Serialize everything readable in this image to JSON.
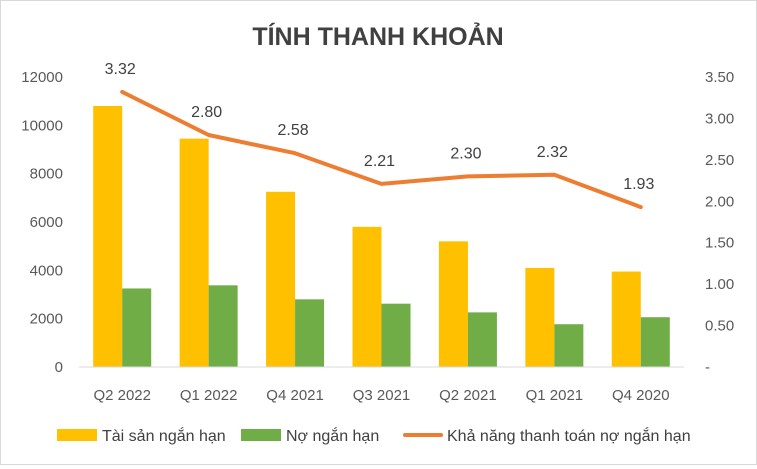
{
  "chart_data": {
    "type": "bar",
    "title": "TÍNH THANH KHOẢN",
    "categories": [
      "Q2 2022",
      "Q1 2022",
      "Q4 2021",
      "Q3 2021",
      "Q2 2021",
      "Q1 2021",
      "Q4 2020"
    ],
    "series": [
      {
        "name": "Tài sản ngắn hạn",
        "type": "bar",
        "axis": "left",
        "color": "#FFC000",
        "values": [
          10800,
          9450,
          7250,
          5800,
          5200,
          4100,
          3950
        ]
      },
      {
        "name": "Nợ ngắn hạn",
        "type": "bar",
        "axis": "left",
        "color": "#70AD47",
        "values": [
          3250,
          3380,
          2800,
          2620,
          2260,
          1770,
          2060
        ]
      },
      {
        "name": "Khả năng thanh toán nợ ngắn hạn",
        "type": "line",
        "axis": "right",
        "color": "#ED7D31",
        "values": [
          3.32,
          2.8,
          2.58,
          2.21,
          2.3,
          2.32,
          1.93
        ],
        "labels": [
          "3.32",
          "2.80",
          "2.58",
          "2.21",
          "2.30",
          "2.32",
          "1.93"
        ]
      }
    ],
    "left_axis": {
      "min": 0,
      "max": 12000,
      "ticks": [
        "0",
        "2000",
        "4000",
        "6000",
        "8000",
        "10000",
        "12000"
      ]
    },
    "right_axis": {
      "min": 0,
      "max": 3.5,
      "ticks": [
        "-",
        "0.50",
        "1.00",
        "1.50",
        "2.00",
        "2.50",
        "3.00",
        "3.50"
      ]
    },
    "grid": false,
    "legend_position": "bottom"
  }
}
